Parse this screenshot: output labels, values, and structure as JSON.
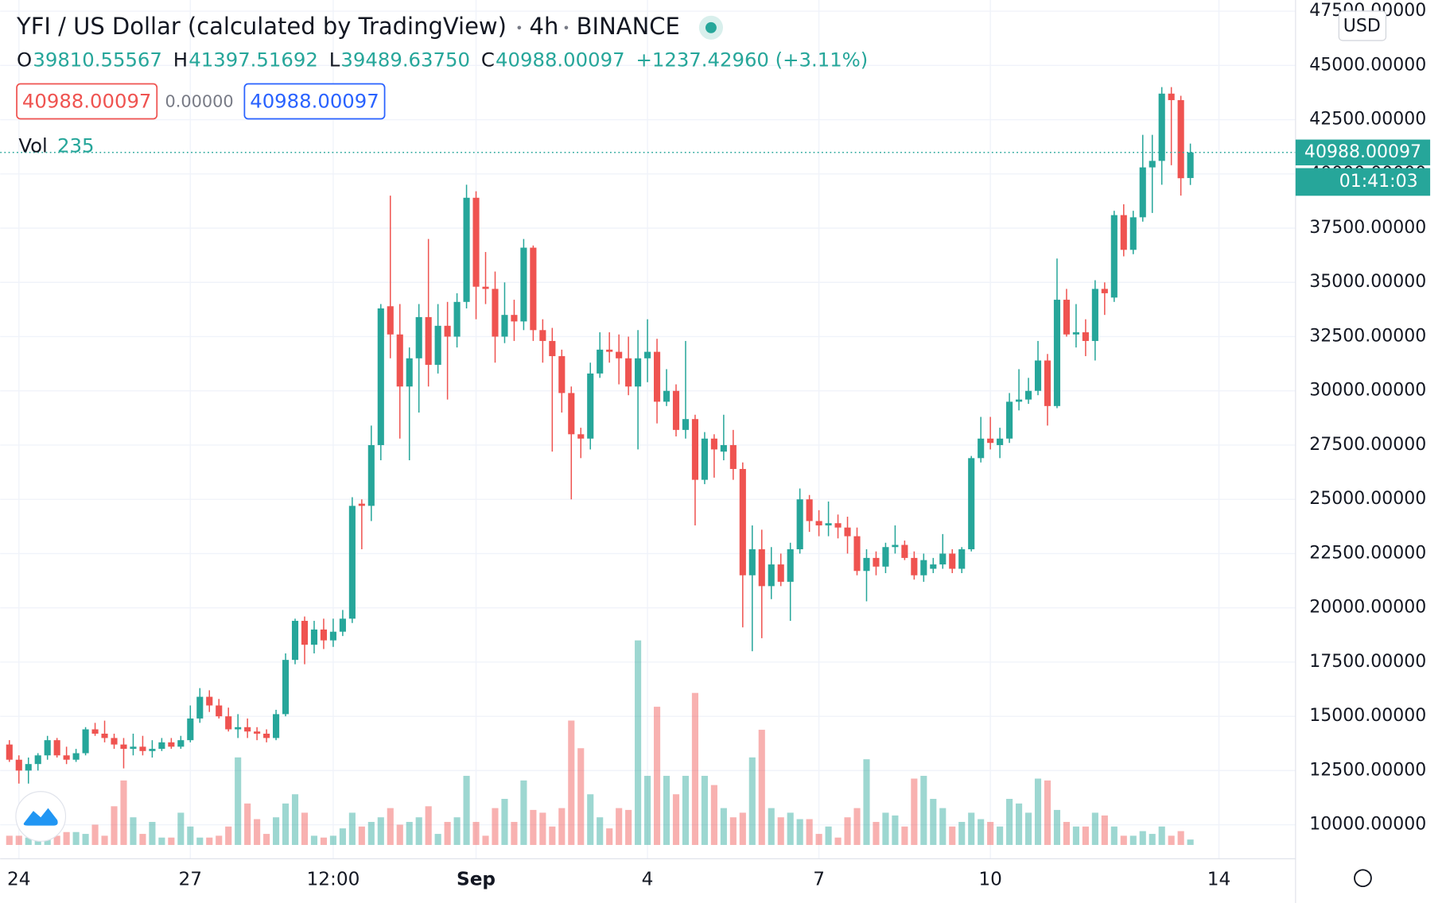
{
  "header": {
    "title": "YFI / US Dollar (calculated by TradingView)",
    "interval": "4h",
    "exchange": "BINANCE",
    "ohlc": [
      {
        "key": "O",
        "value": "39810.55567"
      },
      {
        "key": "H",
        "value": "41397.51692"
      },
      {
        "key": "L",
        "value": "39489.63750"
      },
      {
        "key": "C",
        "value": "40988.00097"
      }
    ],
    "change": "+1237.42960 (+3.11%)",
    "sell": "40988.00097",
    "spread": "0.00000",
    "buy": "40988.00097",
    "volume_label": "Vol",
    "countdown": "01:41:03",
    "currency": "USD"
  },
  "chart_data": {
    "type": "candlestick",
    "up_color": "#26a69a",
    "down_color": "#ef5350",
    "grid": true,
    "ylim": [
      8434,
      48015
    ],
    "yticks": [
      {
        "value": 10000,
        "label": "10000.00000"
      },
      {
        "value": 12500,
        "label": "12500.00000"
      },
      {
        "value": 15000,
        "label": "15000.00000"
      },
      {
        "value": 17500,
        "label": "17500.00000"
      },
      {
        "value": 20000,
        "label": "20000.00000"
      },
      {
        "value": 22500,
        "label": "22500.00000"
      },
      {
        "value": 25000,
        "label": "25000.00000"
      },
      {
        "value": 27500,
        "label": "27500.00000"
      },
      {
        "value": 30000,
        "label": "30000.00000"
      },
      {
        "value": 32500,
        "label": "32500.00000"
      },
      {
        "value": 35000,
        "label": "35000.00000"
      },
      {
        "value": 37500,
        "label": "37500.00000"
      },
      {
        "value": 40000,
        "label": "40000.00000"
      },
      {
        "value": 42500,
        "label": "42500.00000"
      },
      {
        "value": 45000,
        "label": "45000.00000"
      },
      {
        "value": 47500,
        "label": "47500.00000"
      }
    ],
    "xticks": [
      {
        "value": 1,
        "label": "24"
      },
      {
        "value": 19,
        "label": "27"
      },
      {
        "value": 34,
        "label": "12:00"
      },
      {
        "value": 49,
        "label": "Sep"
      },
      {
        "value": 67,
        "label": "4"
      },
      {
        "value": 85,
        "label": "7"
      },
      {
        "value": 103,
        "label": "10"
      },
      {
        "value": 127,
        "label": "14"
      }
    ],
    "candles": [
      [
        13700,
        13900,
        12900,
        13000
      ],
      [
        13000,
        13200,
        11900,
        12500
      ],
      [
        12500,
        13100,
        11900,
        12800
      ],
      [
        12800,
        13300,
        12500,
        13200
      ],
      [
        13200,
        14100,
        13000,
        13900
      ],
      [
        13900,
        14000,
        13100,
        13200
      ],
      [
        13200,
        13600,
        12800,
        13000
      ],
      [
        13000,
        13500,
        12900,
        13300
      ],
      [
        13300,
        14500,
        13200,
        14400
      ],
      [
        14400,
        14700,
        14100,
        14200
      ],
      [
        14200,
        14800,
        13800,
        14000
      ],
      [
        14000,
        14200,
        13500,
        13700
      ],
      [
        13700,
        14000,
        12600,
        13500
      ],
      [
        13500,
        14200,
        13200,
        13600
      ],
      [
        13600,
        14100,
        13200,
        13400
      ],
      [
        13400,
        13900,
        13100,
        13500
      ],
      [
        13500,
        14000,
        13400,
        13800
      ],
      [
        13800,
        14000,
        13500,
        13600
      ],
      [
        13600,
        14100,
        13500,
        13900
      ],
      [
        13900,
        15500,
        13800,
        14900
      ],
      [
        14900,
        16300,
        14700,
        15900
      ],
      [
        15900,
        16200,
        15200,
        15500
      ],
      [
        15500,
        15800,
        14900,
        15000
      ],
      [
        15000,
        15400,
        14300,
        14400
      ],
      [
        14400,
        15100,
        14000,
        14500
      ],
      [
        14500,
        14900,
        14000,
        14300
      ],
      [
        14300,
        14500,
        13900,
        14200
      ],
      [
        14200,
        14400,
        13800,
        14000
      ],
      [
        14000,
        15300,
        13900,
        15100
      ],
      [
        15100,
        17900,
        15000,
        17600
      ],
      [
        17600,
        19500,
        17400,
        19400
      ],
      [
        19400,
        19600,
        17400,
        18300
      ],
      [
        18300,
        19400,
        17900,
        19000
      ],
      [
        19000,
        19500,
        18100,
        18500
      ],
      [
        18500,
        19500,
        18200,
        18900
      ],
      [
        18900,
        19900,
        18700,
        19500
      ],
      [
        19500,
        25100,
        19300,
        24700
      ],
      [
        24800,
        25000,
        22700,
        24700
      ],
      [
        24700,
        28400,
        24000,
        27500
      ],
      [
        27500,
        34000,
        26800,
        33800
      ],
      [
        33900,
        39000,
        31500,
        32600
      ],
      [
        32600,
        34000,
        27800,
        30200
      ],
      [
        30200,
        32000,
        26800,
        31500
      ],
      [
        31500,
        34000,
        29000,
        33400
      ],
      [
        33400,
        37000,
        30200,
        31200
      ],
      [
        31200,
        34000,
        30800,
        33000
      ],
      [
        33000,
        34100,
        29600,
        32500
      ],
      [
        32500,
        34500,
        32000,
        34100
      ],
      [
        34100,
        39500,
        33800,
        38900
      ],
      [
        38900,
        39200,
        33300,
        34800
      ],
      [
        34800,
        36400,
        34000,
        34700
      ],
      [
        34700,
        35500,
        31300,
        32500
      ],
      [
        32500,
        35000,
        32200,
        33500
      ],
      [
        33500,
        34200,
        32300,
        33200
      ],
      [
        33200,
        37000,
        32800,
        36600
      ],
      [
        36600,
        36700,
        32300,
        32800
      ],
      [
        32800,
        33300,
        31300,
        32300
      ],
      [
        32300,
        32900,
        27200,
        31600
      ],
      [
        31600,
        31900,
        29000,
        29900
      ],
      [
        29900,
        30200,
        25000,
        28000
      ],
      [
        28000,
        28300,
        26900,
        27800
      ],
      [
        27800,
        31300,
        27300,
        30800
      ],
      [
        30800,
        32700,
        30600,
        31900
      ],
      [
        31900,
        32700,
        31300,
        31800
      ],
      [
        31800,
        32600,
        30300,
        31500
      ],
      [
        31500,
        32500,
        29800,
        30200
      ],
      [
        30200,
        32800,
        27300,
        31500
      ],
      [
        31500,
        33300,
        30400,
        31800
      ],
      [
        31800,
        32400,
        28500,
        29500
      ],
      [
        29500,
        31000,
        29300,
        30000
      ],
      [
        30000,
        30300,
        27900,
        28200
      ],
      [
        28200,
        32300,
        27800,
        28700
      ],
      [
        28700,
        28900,
        23800,
        25900
      ],
      [
        25900,
        28100,
        25700,
        27800
      ],
      [
        27800,
        28000,
        26000,
        27300
      ],
      [
        27200,
        28900,
        26800,
        27500
      ],
      [
        27500,
        28200,
        25900,
        26400
      ],
      [
        26400,
        26700,
        19100,
        21500
      ],
      [
        21500,
        23800,
        18000,
        22700
      ],
      [
        22700,
        23600,
        18600,
        21000
      ],
      [
        21000,
        22800,
        20400,
        22000
      ],
      [
        22000,
        22500,
        21000,
        21200
      ],
      [
        21200,
        23000,
        19400,
        22700
      ],
      [
        22700,
        25500,
        22500,
        25000
      ],
      [
        25000,
        25200,
        23500,
        24000
      ],
      [
        24000,
        24500,
        23300,
        23800
      ],
      [
        23800,
        24900,
        23300,
        23900
      ],
      [
        23900,
        24300,
        23200,
        23700
      ],
      [
        23700,
        24200,
        22500,
        23300
      ],
      [
        23300,
        23700,
        21500,
        21700
      ],
      [
        21700,
        22700,
        20300,
        22300
      ],
      [
        22300,
        22600,
        21500,
        21900
      ],
      [
        21900,
        23000,
        21600,
        22800
      ],
      [
        22800,
        23800,
        22500,
        22900
      ],
      [
        22900,
        23100,
        22200,
        22300
      ],
      [
        22300,
        22600,
        21300,
        21500
      ],
      [
        21500,
        22500,
        21200,
        22200
      ],
      [
        21800,
        22300,
        21600,
        22000
      ],
      [
        22000,
        23400,
        21800,
        22500
      ],
      [
        22500,
        22700,
        21600,
        21800
      ],
      [
        21800,
        22800,
        21600,
        22700
      ],
      [
        22700,
        27000,
        22600,
        26900
      ],
      [
        26900,
        28800,
        26700,
        27800
      ],
      [
        27800,
        28800,
        27300,
        27600
      ],
      [
        27500,
        28300,
        26900,
        27800
      ],
      [
        27800,
        29900,
        27600,
        29500
      ],
      [
        29500,
        31000,
        29100,
        29600
      ],
      [
        29600,
        30600,
        29400,
        30000
      ],
      [
        30000,
        32300,
        29800,
        31400
      ],
      [
        31400,
        31700,
        28400,
        29300
      ],
      [
        29300,
        36100,
        29200,
        34200
      ],
      [
        34200,
        34700,
        32500,
        32600
      ],
      [
        32600,
        34000,
        32000,
        32700
      ],
      [
        32700,
        33300,
        31600,
        32300
      ],
      [
        32300,
        35100,
        31400,
        34700
      ],
      [
        34700,
        35000,
        33500,
        34500
      ],
      [
        34300,
        38300,
        34100,
        38100
      ],
      [
        38100,
        38600,
        36200,
        36500
      ],
      [
        36500,
        38300,
        36300,
        38000
      ],
      [
        38000,
        41800,
        37800,
        40300
      ],
      [
        40300,
        41800,
        38200,
        40600
      ],
      [
        40600,
        44000,
        39500,
        43700
      ],
      [
        43700,
        44000,
        40400,
        43400
      ],
      [
        43400,
        43600,
        39000,
        39800
      ],
      [
        39810.55567,
        41397.51692,
        39489.6375,
        40988.00097
      ]
    ],
    "volumes": [
      400,
      400,
      320,
      400,
      480,
      400,
      560,
      560,
      480,
      880,
      400,
      1680,
      2800,
      1200,
      480,
      1000,
      320,
      320,
      1400,
      800,
      320,
      320,
      400,
      800,
      3800,
      1800,
      1120,
      480,
      1200,
      1800,
      2200,
      1400,
      400,
      320,
      400,
      720,
      1400,
      800,
      1000,
      1200,
      1600,
      880,
      1000,
      1200,
      1680,
      480,
      1000,
      1200,
      3000,
      1000,
      400,
      1600,
      2000,
      1000,
      2800,
      1520,
      1400,
      800,
      1600,
      5400,
      4200,
      2200,
      1200,
      720,
      1600,
      1520,
      8880,
      3000,
      6000,
      3000,
      2200,
      3000,
      6600,
      3000,
      2600,
      1600,
      1200,
      1400,
      3800,
      5000,
      1600,
      1200,
      1400,
      1120,
      1120,
      480,
      800,
      320,
      1200,
      1600,
      3720,
      1000,
      1400,
      1280,
      800,
      2880,
      3000,
      2000,
      1600,
      800,
      1000,
      1400,
      1120,
      1000,
      800,
      2000,
      1800,
      1400,
      2880,
      2800,
      1520,
      1000,
      800,
      800,
      1400,
      1280,
      800,
      400,
      400,
      600,
      480,
      800,
      400,
      600,
      235
    ]
  }
}
